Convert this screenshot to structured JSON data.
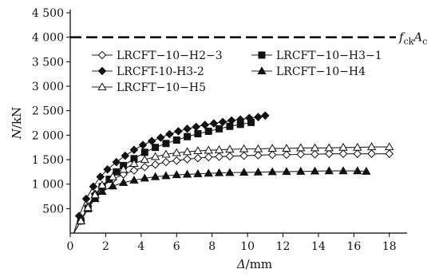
{
  "chart_data": {
    "type": "line",
    "xlabel": {
      "symbol": "Δ",
      "unit": "/mm"
    },
    "ylabel": {
      "symbol": "N",
      "unit": "/kN"
    },
    "xlim": [
      0,
      19
    ],
    "ylim": [
      0,
      4500
    ],
    "x_ticks": [
      "0",
      "2",
      "4",
      "6",
      "8",
      "10",
      "12",
      "14",
      "16",
      "18"
    ],
    "y_ticks": [
      "4 500",
      "4 000",
      "3 500",
      "3 000",
      "2 500",
      "2 000",
      "1 500",
      "1 000",
      "500"
    ],
    "grid": false,
    "legend_position": "top-left",
    "reference_line": {
      "y": 4000,
      "label_main": "f",
      "label_sub1": "ck",
      "label_a": "A",
      "label_sub2": "c"
    },
    "series": [
      {
        "name": "LRCFT−10−H2−3",
        "marker": "diamond-open",
        "x": [
          0.2,
          0.6,
          1.0,
          1.4,
          1.8,
          2.4,
          3.0,
          3.6,
          4.2,
          4.8,
          5.4,
          6.0,
          6.6,
          7.2,
          7.8,
          8.4,
          9.0,
          9.8,
          10.6,
          11.4,
          12.2,
          13.0,
          13.8,
          14.6,
          15.4,
          16.2,
          17.0,
          18.0
        ],
        "y": [
          0,
          250,
          550,
          800,
          950,
          1100,
          1200,
          1280,
          1350,
          1400,
          1450,
          1480,
          1510,
          1530,
          1550,
          1560,
          1570,
          1580,
          1590,
          1600,
          1600,
          1610,
          1610,
          1620,
          1620,
          1620,
          1620,
          1620
        ]
      },
      {
        "name": "LRCFT−10−H3−1",
        "marker": "square-filled",
        "x": [
          0.2,
          0.6,
          1.0,
          1.4,
          1.8,
          2.2,
          2.6,
          3.0,
          3.6,
          4.2,
          4.8,
          5.4,
          6.0,
          6.6,
          7.2,
          7.8,
          8.4,
          9.0,
          9.6,
          10.2
        ],
        "y": [
          0,
          250,
          500,
          750,
          950,
          1100,
          1250,
          1380,
          1520,
          1650,
          1750,
          1830,
          1900,
          1970,
          2030,
          2080,
          2130,
          2180,
          2220,
          2260
        ]
      },
      {
        "name": "LRCFT-10-H3-2",
        "marker": "diamond-filled",
        "x": [
          0.2,
          0.5,
          0.9,
          1.3,
          1.7,
          2.1,
          2.6,
          3.1,
          3.6,
          4.1,
          4.6,
          5.1,
          5.6,
          6.1,
          6.6,
          7.1,
          7.6,
          8.1,
          8.6,
          9.1,
          9.6,
          10.1,
          10.6,
          11.0
        ],
        "y": [
          0,
          350,
          700,
          950,
          1150,
          1300,
          1450,
          1580,
          1700,
          1800,
          1880,
          1950,
          2020,
          2080,
          2130,
          2170,
          2210,
          2240,
          2270,
          2300,
          2320,
          2350,
          2370,
          2400
        ]
      },
      {
        "name": "LRCFT−10−H4",
        "marker": "triangle-filled",
        "x": [
          0.2,
          0.6,
          1.0,
          1.4,
          1.8,
          2.4,
          3.0,
          3.6,
          4.2,
          4.8,
          5.4,
          6.0,
          6.6,
          7.2,
          7.8,
          8.4,
          9.0,
          9.8,
          10.6,
          11.4,
          12.2,
          13.0,
          13.8,
          14.6,
          15.4,
          16.2,
          16.7
        ],
        "y": [
          0,
          250,
          500,
          700,
          850,
          960,
          1030,
          1080,
          1120,
          1150,
          1170,
          1190,
          1200,
          1210,
          1220,
          1230,
          1235,
          1240,
          1245,
          1250,
          1255,
          1260,
          1265,
          1270,
          1270,
          1270,
          1260
        ]
      },
      {
        "name": "LRCFT−10−H5",
        "marker": "triangle-open",
        "x": [
          0.2,
          0.6,
          1.0,
          1.4,
          1.8,
          2.4,
          3.0,
          3.6,
          4.2,
          4.8,
          5.4,
          6.0,
          6.6,
          7.2,
          7.8,
          8.4,
          9.0,
          9.8,
          10.6,
          11.4,
          12.2,
          13.0,
          13.8,
          14.6,
          15.4,
          16.2,
          17.0,
          18.0
        ],
        "y": [
          0,
          250,
          520,
          780,
          980,
          1150,
          1300,
          1420,
          1500,
          1560,
          1610,
          1640,
          1660,
          1680,
          1690,
          1700,
          1710,
          1720,
          1720,
          1730,
          1730,
          1740,
          1740,
          1740,
          1750,
          1750,
          1760,
          1760
        ]
      }
    ]
  }
}
